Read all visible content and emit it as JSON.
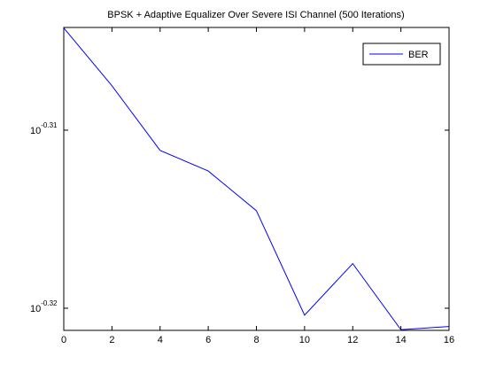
{
  "chart_data": {
    "type": "line",
    "title": "BPSK + Adaptive Equalizer Over Severe ISI Channel (500 Iterations)",
    "x": [
      0,
      2,
      4,
      6,
      8,
      10,
      12,
      14,
      16
    ],
    "series": [
      {
        "name": "BER",
        "color": "#0000ff",
        "values": [
          0.4963,
          0.4926,
          0.4885,
          0.4872,
          0.4847,
          0.4782,
          0.4814,
          0.4773,
          0.4775
        ]
      }
    ],
    "xlim": [
      0,
      16
    ],
    "xticks": [
      0,
      2,
      4,
      6,
      8,
      10,
      12,
      14,
      16
    ],
    "ylim": [
      0.47726,
      0.49633
    ],
    "ylog": true,
    "yticks": [
      {
        "value": 0.48978,
        "label": "10",
        "exponent": "-0.31"
      },
      {
        "value": 0.47863,
        "label": "10",
        "exponent": "-0.32"
      }
    ],
    "legend": "northeast"
  }
}
